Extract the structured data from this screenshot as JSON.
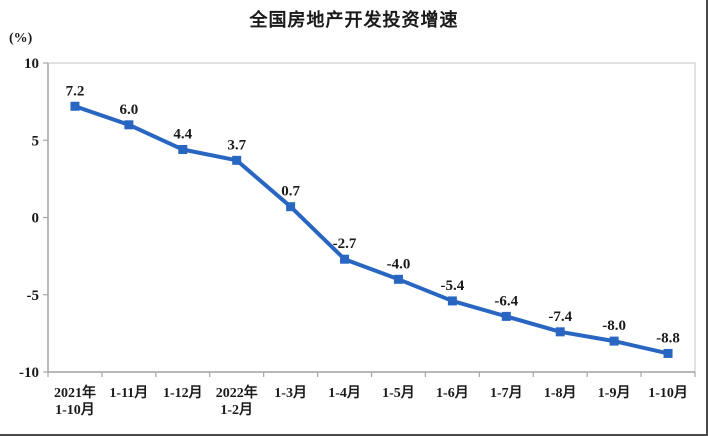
{
  "title": "全国房地产开发投资增速",
  "chart_data": {
    "type": "line",
    "title": "全国房地产开发投资增速",
    "unit_label": "(%)",
    "categories": [
      [
        "2021年",
        "1-10月"
      ],
      [
        "1-11月"
      ],
      [
        "1-12月"
      ],
      [
        "2022年",
        "1-2月"
      ],
      [
        "1-3月"
      ],
      [
        "1-4月"
      ],
      [
        "1-5月"
      ],
      [
        "1-6月"
      ],
      [
        "1-7月"
      ],
      [
        "1-8月"
      ],
      [
        "1-9月"
      ],
      [
        "1-10月"
      ]
    ],
    "values": [
      7.2,
      6.0,
      4.4,
      3.7,
      0.7,
      -2.7,
      -4.0,
      -5.4,
      -6.4,
      -7.4,
      -8.0,
      -8.8
    ],
    "data_labels": [
      "7.2",
      "6.0",
      "4.4",
      "3.7",
      "0.7",
      "-2.7",
      "-4.0",
      "-5.4",
      "-6.4",
      "-7.4",
      "-8.0",
      "-8.8"
    ],
    "y_ticks": [
      10,
      5,
      0,
      -5,
      -10
    ],
    "ylim": [
      -10,
      10
    ],
    "grid": false,
    "legend": "none",
    "marker": "square",
    "colors": {
      "line": "#2866c2",
      "marker": "#2866c2",
      "axis": "#a6a6a6",
      "frame": "#d9d9d9",
      "text": "#1a1a1a"
    }
  }
}
